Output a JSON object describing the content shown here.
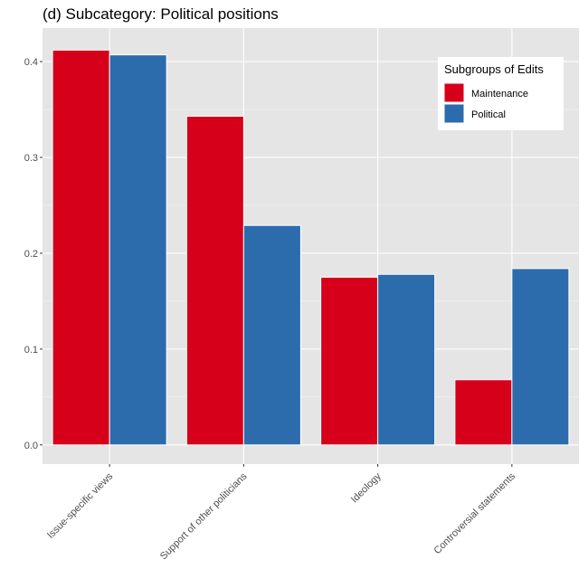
{
  "chart_data": {
    "type": "bar",
    "title": "(d) Subcategory: Political positions",
    "xlabel": "",
    "ylabel": "",
    "categories": [
      "Issue-specific views",
      "Support of other politicians",
      "Ideology",
      "Controversial statements"
    ],
    "series": [
      {
        "name": "Maintenance",
        "color": "#d7001a",
        "values": [
          0.412,
          0.343,
          0.175,
          0.068
        ]
      },
      {
        "name": "Political",
        "color": "#2c6bac",
        "values": [
          0.407,
          0.229,
          0.178,
          0.184
        ]
      }
    ],
    "ylim": [
      -0.02,
      0.435
    ],
    "yticks": [
      0.0,
      0.1,
      0.2,
      0.3,
      0.4
    ],
    "ytick_labels": [
      "0.0",
      "0.1",
      "0.2",
      "0.3",
      "0.4"
    ],
    "grid": true,
    "legend": {
      "title": "Subgroups of Edits",
      "position": "top-right"
    }
  }
}
